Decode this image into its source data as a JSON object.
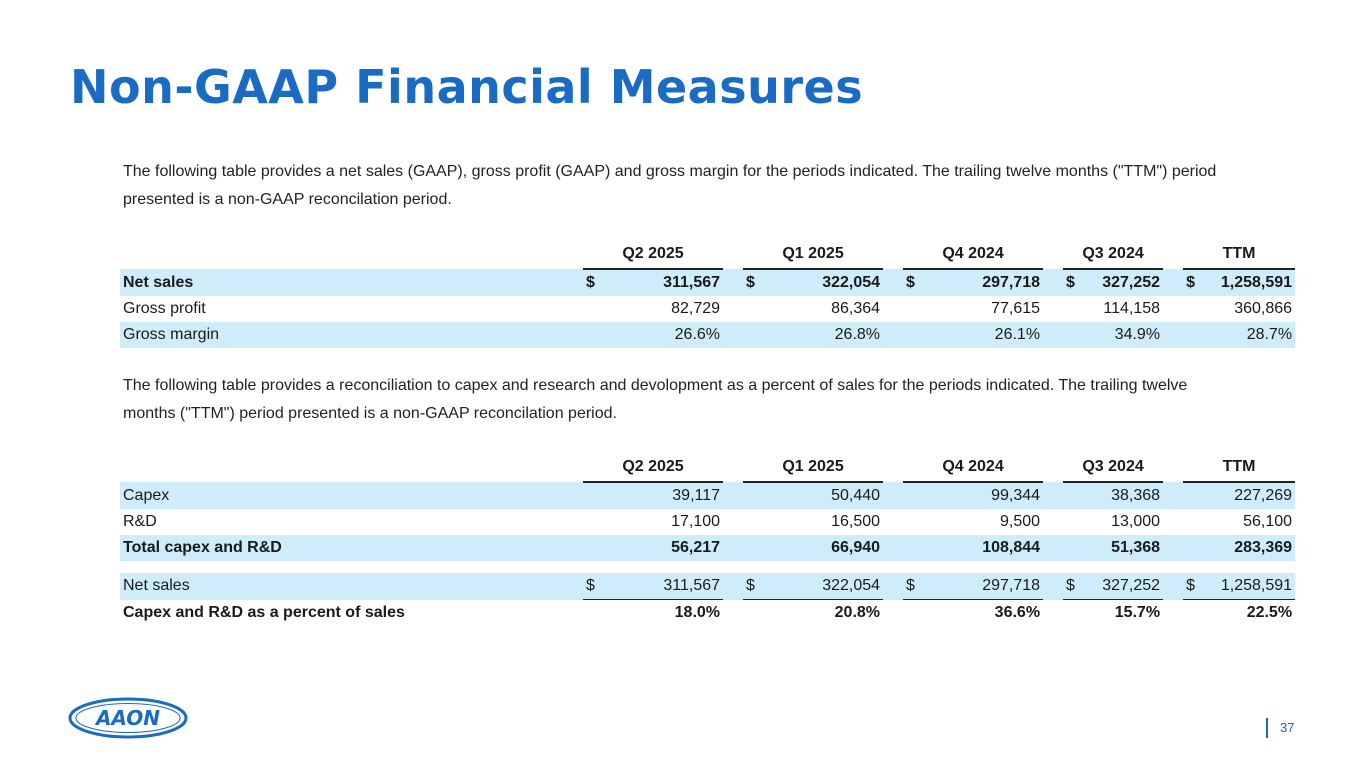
{
  "title": "Non-GAAP Financial Measures",
  "intro1": "The following table provides a net sales (GAAP), gross profit (GAAP) and gross margin for the periods indicated.   The trailing twelve months (\"TTM\") period presented is a non-GAAP reconcilation period.",
  "intro2": "The following table provides a reconciliation to capex and research and devolopment as a percent of sales for the periods indicated.  The trailing twelve months (\"TTM\") period presented is a non-GAAP reconcilation period.",
  "columns": [
    "Q2 2025",
    "Q1 2025",
    "Q4 2024",
    "Q3 2024",
    "TTM"
  ],
  "table1": {
    "net_sales": {
      "label": "Net sales",
      "currency": "$",
      "values": [
        "311,567",
        "322,054",
        "297,718",
        "327,252",
        "1,258,591"
      ]
    },
    "gross_profit": {
      "label": "Gross profit",
      "values": [
        "82,729",
        "86,364",
        "77,615",
        "114,158",
        "360,866"
      ]
    },
    "gross_margin": {
      "label": "Gross margin",
      "values": [
        "26.6%",
        "26.8%",
        "26.1%",
        "34.9%",
        "28.7%"
      ]
    }
  },
  "table2": {
    "capex": {
      "label": "Capex",
      "values": [
        "39,117",
        "50,440",
        "99,344",
        "38,368",
        "227,269"
      ]
    },
    "rd": {
      "label": "R&D",
      "values": [
        "17,100",
        "16,500",
        "9,500",
        "13,000",
        "56,100"
      ]
    },
    "total": {
      "label": "Total capex and R&D",
      "values": [
        "56,217",
        "66,940",
        "108,844",
        "51,368",
        "283,369"
      ]
    },
    "net_sales": {
      "label": "Net sales",
      "currency": "$",
      "values": [
        "311,567",
        "322,054",
        "297,718",
        "327,252",
        "1,258,591"
      ]
    },
    "pct": {
      "label": "Capex and R&D as a percent of sales",
      "values": [
        "18.0%",
        "20.8%",
        "36.6%",
        "15.7%",
        "22.5%"
      ]
    }
  },
  "logo_text": "AAON",
  "page_number": "37",
  "colors": {
    "brand_blue": "#1a6bc4",
    "row_shade": "#cfecfb"
  }
}
